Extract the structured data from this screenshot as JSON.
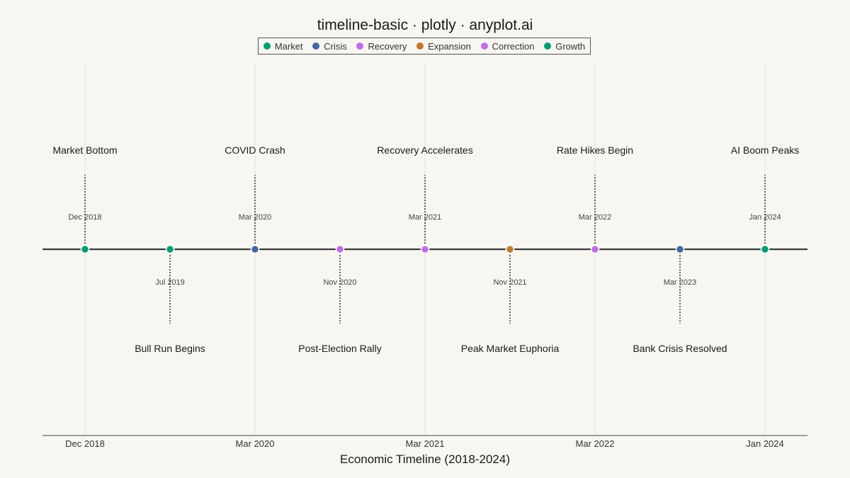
{
  "chart_data": {
    "type": "scatter",
    "title": "timeline-basic · plotly · anyplot.ai",
    "xlabel": "Economic Timeline (2018-2024)",
    "ylabel": "",
    "grid": true,
    "legend_position": "top-center",
    "x_ticks": [
      "Dec 2018",
      "Mar 2020",
      "Mar 2021",
      "Mar 2022",
      "Jan 2024"
    ],
    "legend": [
      {
        "name": "Market",
        "color": "#009e73"
      },
      {
        "name": "Crisis",
        "color": "#4467a3"
      },
      {
        "name": "Recovery",
        "color": "#c06ee8"
      },
      {
        "name": "Expansion",
        "color": "#c07a2c"
      },
      {
        "name": "Correction",
        "color": "#c06ee8"
      },
      {
        "name": "Growth",
        "color": "#009e73"
      }
    ],
    "events": [
      {
        "date": "Dec 2018",
        "event": "Market Bottom",
        "category": "Market",
        "side": "above",
        "color": "#009e73"
      },
      {
        "date": "Jul 2019",
        "event": "Bull Run Begins",
        "category": "Growth",
        "side": "below",
        "color": "#009e73"
      },
      {
        "date": "Mar 2020",
        "event": "COVID Crash",
        "category": "Crisis",
        "side": "above",
        "color": "#4467a3"
      },
      {
        "date": "Nov 2020",
        "event": "Post-Election Rally",
        "category": "Recovery",
        "side": "below",
        "color": "#c06ee8"
      },
      {
        "date": "Mar 2021",
        "event": "Recovery Accelerates",
        "category": "Recovery",
        "side": "above",
        "color": "#c06ee8"
      },
      {
        "date": "Nov 2021",
        "event": "Peak Market Euphoria",
        "category": "Expansion",
        "side": "below",
        "color": "#c07a2c"
      },
      {
        "date": "Mar 2022",
        "event": "Rate Hikes Begin",
        "category": "Correction",
        "side": "above",
        "color": "#c06ee8"
      },
      {
        "date": "Mar 2023",
        "event": "Bank Crisis Resolved",
        "category": "Crisis",
        "side": "below",
        "color": "#4467a3"
      },
      {
        "date": "Jan 2024",
        "event": "AI Boom Peaks",
        "category": "Growth",
        "side": "above",
        "color": "#009e73"
      }
    ]
  }
}
